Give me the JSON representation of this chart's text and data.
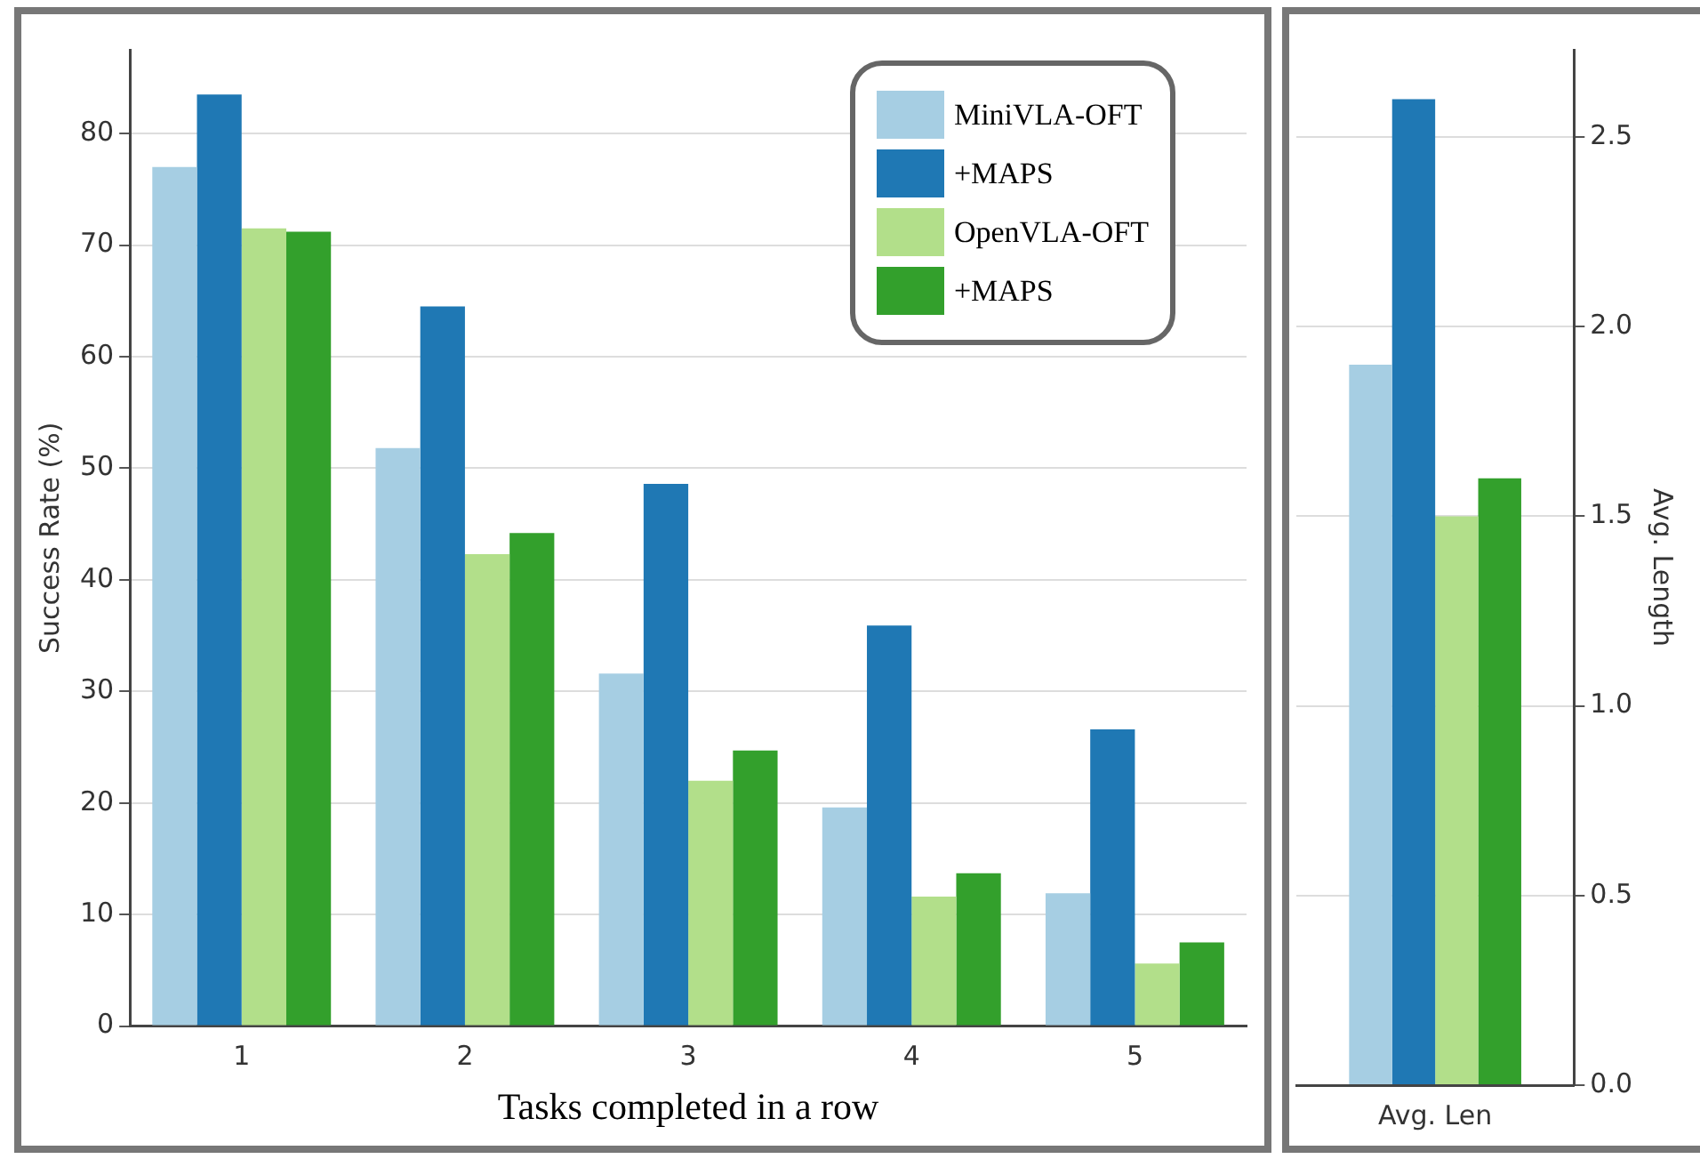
{
  "chart_data": [
    {
      "type": "bar",
      "xlabel": "Tasks completed in a row",
      "ylabel": "Success Rate (%)",
      "categories": [
        "1",
        "2",
        "3",
        "4",
        "5"
      ],
      "ylim": [
        0,
        87.5
      ],
      "yticks": [
        0,
        10,
        20,
        30,
        40,
        50,
        60,
        70,
        80
      ],
      "grid": "y",
      "legend": "top right",
      "series": [
        {
          "name": "MiniVLA-OFT",
          "color": "#a6cee3",
          "values": [
            77,
            51.8,
            31.6,
            19.6,
            11.9
          ]
        },
        {
          "name": "+MAPS",
          "color": "#1f78b4",
          "values": [
            83.5,
            64.5,
            48.6,
            35.9,
            26.6
          ]
        },
        {
          "name": "OpenVLA-OFT",
          "color": "#b2df8a",
          "values": [
            71.5,
            42.3,
            22,
            11.6,
            5.6
          ]
        },
        {
          "name": "+MAPS",
          "color": "#33a02c",
          "values": [
            71.2,
            44.2,
            24.7,
            13.7,
            7.5
          ]
        }
      ]
    },
    {
      "type": "bar",
      "y2label": "Avg. Length",
      "categories": [
        "Avg. Len"
      ],
      "y2lim": [
        0,
        2.73
      ],
      "y2ticks": [
        {
          "value": 0,
          "label": "0.0"
        },
        0.5,
        {
          "value": 1,
          "label": "1.0"
        },
        1.5,
        {
          "value": 2,
          "label": "2.0"
        },
        2.5
      ],
      "grid": "y",
      "series": [
        {
          "color": "#a6cee3",
          "values": [
            1.9
          ],
          "axis": "y2"
        },
        {
          "color": "#1f78b4",
          "values": [
            2.6
          ],
          "axis": "y2"
        },
        {
          "color": "#b2df8a",
          "values": [
            1.5
          ],
          "axis": "y2"
        },
        {
          "color": "#33a02c",
          "values": [
            1.6
          ],
          "axis": "y2"
        }
      ]
    }
  ]
}
